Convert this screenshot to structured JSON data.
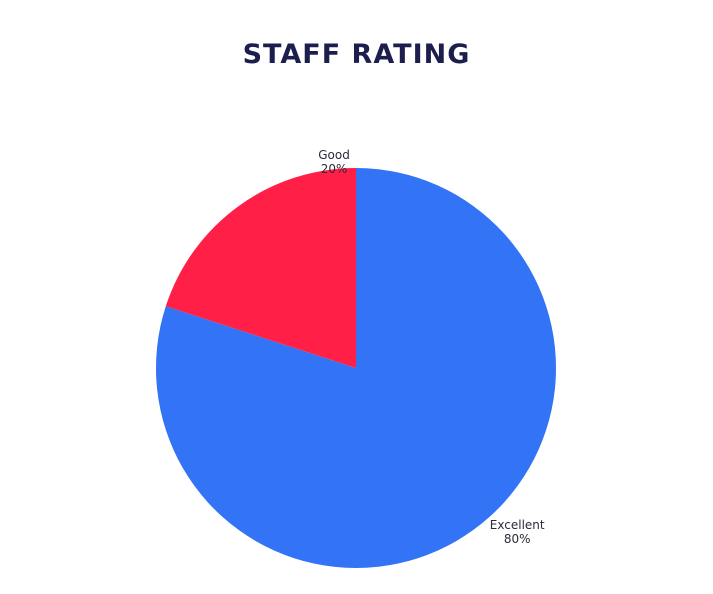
{
  "colors": {
    "title": "#1c1e4d",
    "label": "#2b2b3b",
    "excellent": "#3373f5",
    "good": "#ff1f47"
  },
  "chart_data": {
    "type": "pie",
    "title": "STAFF RATING",
    "slices": [
      {
        "label": "Excellent",
        "value": 80,
        "value_label": "80%",
        "color": "#3373f5"
      },
      {
        "label": "Good",
        "value": 20,
        "value_label": "20%",
        "color": "#ff1f47"
      }
    ],
    "start": "12 o'clock",
    "direction": "clockwise",
    "legend": "none"
  }
}
